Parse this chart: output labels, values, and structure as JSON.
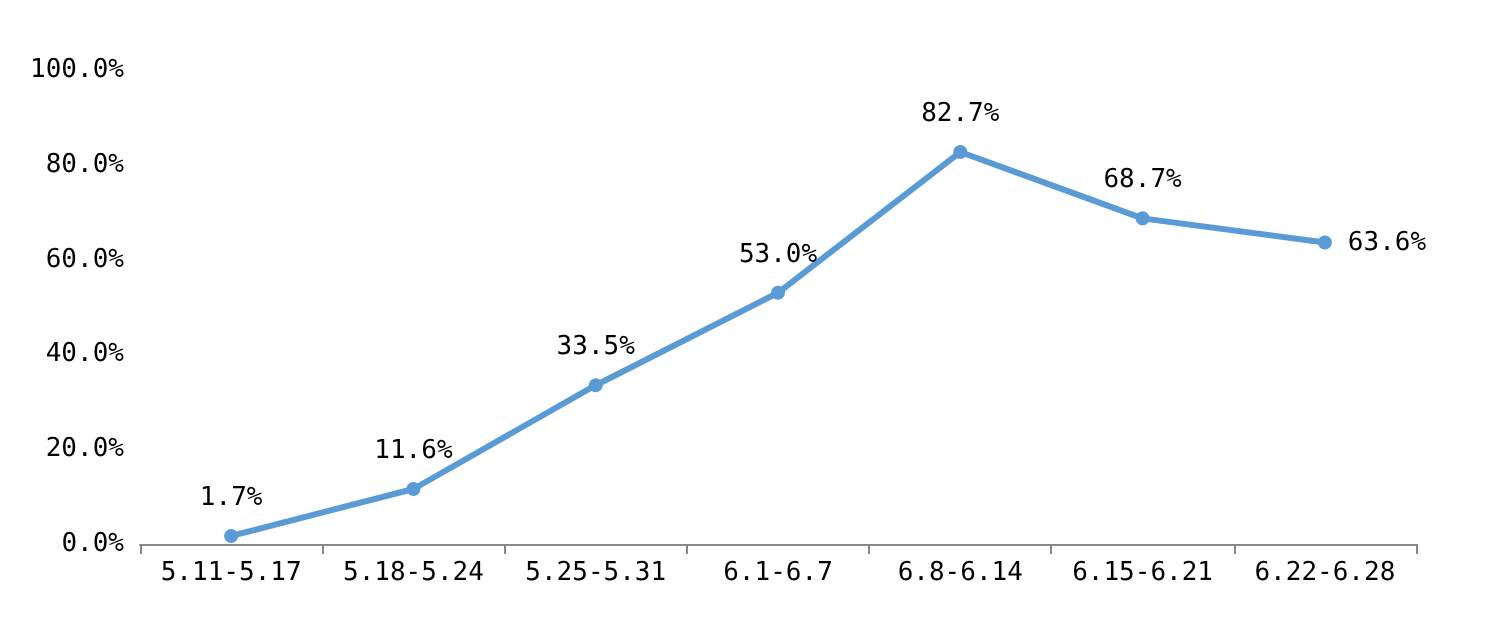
{
  "chart_data": {
    "type": "line",
    "categories": [
      "5.11-5.17",
      "5.18-5.24",
      "5.25-5.31",
      "6.1-6.7",
      "6.8-6.14",
      "6.15-6.21",
      "6.22-6.28"
    ],
    "series": [
      {
        "color": "#5b9bd5",
        "values": [
          1.7,
          11.6,
          33.5,
          53.0,
          82.7,
          68.7,
          63.6
        ],
        "value_labels": [
          "1.7%",
          "11.6%",
          "33.5%",
          "53.0%",
          "82.7%",
          "68.7%",
          "63.6%"
        ]
      }
    ],
    "ylim": [
      0,
      100
    ],
    "yticks": [
      {
        "value": 0,
        "label": "0.0%"
      },
      {
        "value": 20,
        "label": "20.0%"
      },
      {
        "value": 40,
        "label": "40.0%"
      },
      {
        "value": 60,
        "label": "60.0%"
      },
      {
        "value": 80,
        "label": "80.0%"
      },
      {
        "value": 100,
        "label": "100.0%"
      }
    ],
    "grid": false,
    "marker": "circle",
    "line_style": "solid"
  }
}
